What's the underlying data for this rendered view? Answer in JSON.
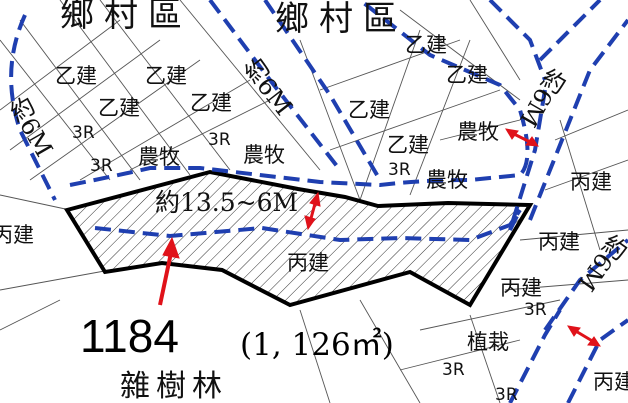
{
  "colors": {
    "road_boundary": "#1f3fb0",
    "parcel_outline": "#000000",
    "hatch": "#333333",
    "arrow": "#e0121a",
    "lot_line": "#555555"
  },
  "zones": {
    "village": "鄉村區",
    "building_b": "乙建",
    "building_c": "丙建",
    "agriculture": "農牧",
    "residential_3r": "3R",
    "planting": "植栽",
    "woodland": "雜樹林"
  },
  "roads": {
    "road_6m": "約6M",
    "road_13_5": "約13.5~6M"
  },
  "parcel": {
    "number": "1184",
    "area": "(1, 126㎡)"
  }
}
